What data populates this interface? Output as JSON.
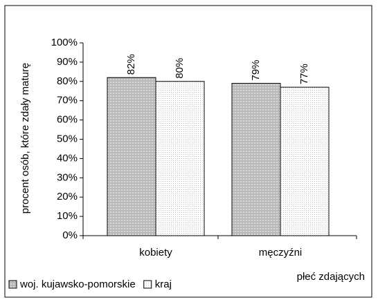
{
  "chart_data": {
    "type": "bar",
    "categories": [
      "kobiety",
      "męczyźni"
    ],
    "series": [
      {
        "name": "woj. kujawsko-pomorskie",
        "color": "#c8c8c8",
        "values": [
          82,
          79
        ],
        "value_labels": [
          "82%",
          "79%"
        ]
      },
      {
        "name": "kraj",
        "color": "#ffffff",
        "values": [
          80,
          77
        ],
        "value_labels": [
          "80%",
          "77%"
        ]
      }
    ],
    "ylabel": "procent osób, które zdały maturę",
    "xlabel": "płeć zdających",
    "ylim": [
      0,
      100
    ],
    "yticks": [
      {
        "value": 0,
        "label": "0%"
      },
      {
        "value": 10,
        "label": "10%"
      },
      {
        "value": 20,
        "label": "20%"
      },
      {
        "value": 30,
        "label": "30%"
      },
      {
        "value": 40,
        "label": "40%"
      },
      {
        "value": 50,
        "label": "50%"
      },
      {
        "value": 60,
        "label": "60%"
      },
      {
        "value": 70,
        "label": "70%"
      },
      {
        "value": 80,
        "label": "80%"
      },
      {
        "value": 90,
        "label": "90%"
      },
      {
        "value": 100,
        "label": "100%"
      }
    ],
    "legend": "bottom-left"
  }
}
